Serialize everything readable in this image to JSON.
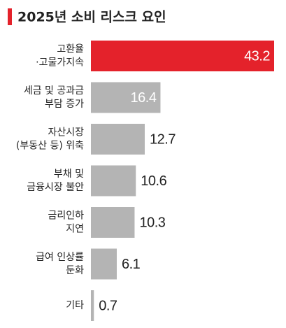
{
  "chart_data": {
    "type": "bar",
    "orientation": "horizontal",
    "title": "2025년 소비 리스크 요인",
    "categories": [
      [
        "고환율",
        "·고물가지속"
      ],
      [
        "세금 및 공과금",
        "부담 증가"
      ],
      [
        "자산시장",
        "(부동산 등) 위축"
      ],
      [
        "부채 및",
        "금융시장 불안"
      ],
      [
        "금리인하",
        "지연"
      ],
      [
        "급여 인상률",
        "둔화"
      ],
      [
        "기타"
      ]
    ],
    "values": [
      43.2,
      16.4,
      12.7,
      10.6,
      10.3,
      6.1,
      0.7
    ],
    "colors": [
      "#e4222b",
      "#b4b4b4",
      "#b4b4b4",
      "#b4b4b4",
      "#b4b4b4",
      "#b4b4b4",
      "#b4b4b4"
    ]
  }
}
